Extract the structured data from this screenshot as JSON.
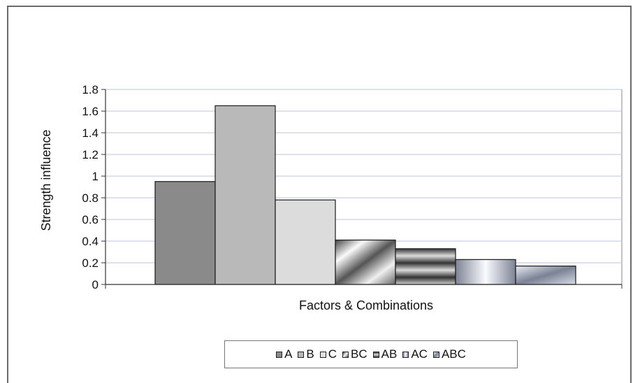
{
  "chart_data": {
    "type": "bar",
    "categories": [
      "A",
      "B",
      "C",
      "BC",
      "AB",
      "AC",
      "ABC"
    ],
    "values": [
      0.95,
      1.65,
      0.78,
      0.41,
      0.33,
      0.23,
      0.17
    ],
    "title": "",
    "xlabel": "Factors & Combinations",
    "ylabel": "Strength influence",
    "ylim": [
      0,
      1.8
    ],
    "yticks": [
      "0",
      "0.2",
      "0.4",
      "0.6",
      "0.8",
      "1",
      "1.2",
      "1.4",
      "1.6",
      "1.8"
    ],
    "grid": true,
    "legend_position": "bottom",
    "colors": [
      "#8a8a8a",
      "#b9b9b9",
      "#dcdcdc",
      "#9a9a9a",
      "#6d6d6d",
      "#b8bcc8",
      "#a9b0c0"
    ]
  }
}
